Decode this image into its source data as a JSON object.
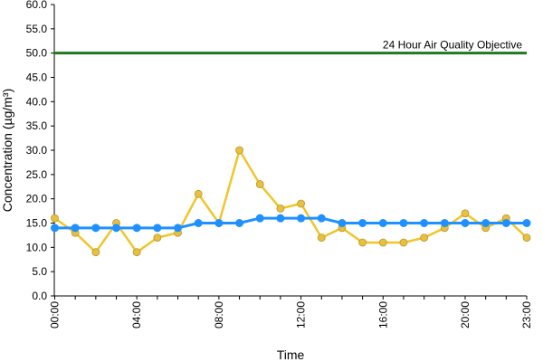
{
  "chart_data": {
    "type": "line",
    "xlabel": "Time",
    "ylabel": "Concentration (µg/m³)",
    "ylim": [
      0,
      60
    ],
    "y_ticks": [
      "0.0",
      "5.0",
      "10.0",
      "15.0",
      "20.0",
      "25.0",
      "30.0",
      "35.0",
      "40.0",
      "45.0",
      "50.0",
      "55.0",
      "60.0"
    ],
    "x_tick_labels": [
      "00:00",
      "04:00",
      "08:00",
      "12:00",
      "16:00",
      "20:00",
      "23:00"
    ],
    "x_tick_hours": [
      0,
      4,
      8,
      12,
      16,
      20,
      23
    ],
    "x": [
      0,
      1,
      2,
      3,
      4,
      5,
      6,
      7,
      8,
      9,
      10,
      11,
      12,
      13,
      14,
      15,
      16,
      17,
      18,
      19,
      20,
      21,
      22,
      23
    ],
    "grid": false,
    "series": [
      {
        "color": "#f0c52a",
        "marker": "#e8c040",
        "values": [
          16,
          13,
          9,
          15,
          9,
          12,
          13,
          21,
          15,
          30,
          23,
          18,
          19,
          12,
          14,
          11,
          11,
          11,
          12,
          14,
          17,
          14,
          16,
          12
        ]
      },
      {
        "color": "#1e90ff",
        "marker": "#1e90ff",
        "values": [
          14,
          14,
          14,
          14,
          14,
          14,
          14,
          15,
          15,
          15,
          16,
          16,
          16,
          16,
          15,
          15,
          15,
          15,
          15,
          15,
          15,
          15,
          15,
          15
        ]
      }
    ],
    "reference_line": {
      "value": 50,
      "label": "24 Hour Air Quality Objective",
      "color": "#1f7a1f"
    }
  }
}
